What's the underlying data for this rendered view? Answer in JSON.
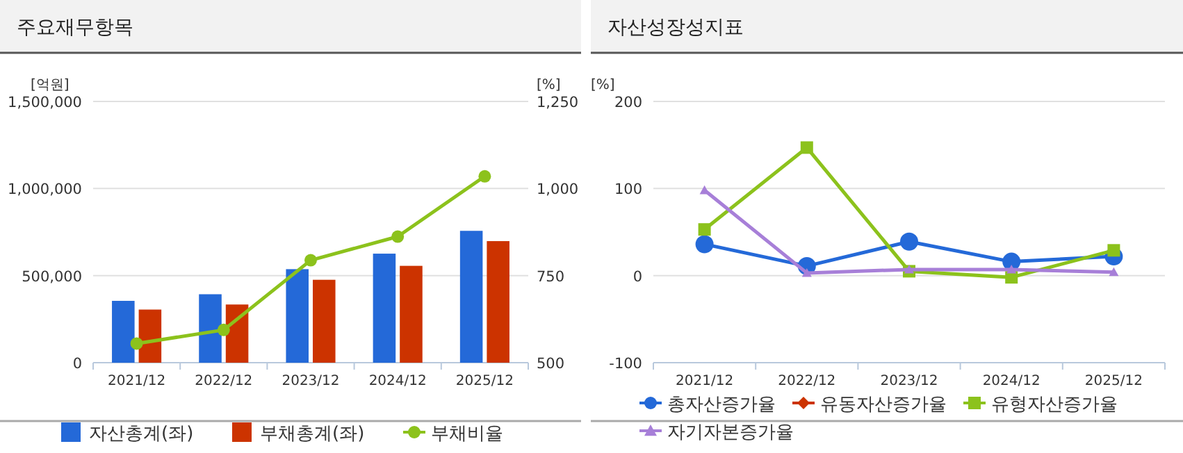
{
  "chart_data": [
    {
      "type": "bar",
      "title": "주요재무항목",
      "ylabel": "[억원]",
      "y2label": "[%]",
      "categories": [
        "2021/12",
        "2022/12",
        "2023/12",
        "2024/12",
        "2025/12"
      ],
      "series": [
        {
          "name": "자산총계(좌)",
          "color": "#2469d8",
          "values": [
            355000,
            393000,
            537000,
            626000,
            757000
          ]
        },
        {
          "name": "부채총계(좌)",
          "color": "#cc3300",
          "values": [
            305000,
            334000,
            476000,
            556000,
            698000
          ]
        },
        {
          "name": "부채비율",
          "color": "#8cc21c",
          "type": "line",
          "axis": "y2",
          "marker": "circle",
          "values": [
            555,
            594,
            794,
            862,
            1035
          ]
        }
      ],
      "ylim": [
        0,
        1500000
      ],
      "yticks": [
        0,
        {
          "value": 500000,
          "label": "500,000"
        },
        {
          "value": 1000000,
          "label": "1,000,000"
        },
        {
          "value": 1500000,
          "label": "1,500,000"
        }
      ],
      "y2lim": [
        500,
        1250
      ],
      "y2ticks": [
        500,
        750,
        {
          "value": 1000,
          "label": "1,000"
        },
        {
          "value": 1250,
          "label": "1,250"
        }
      ],
      "grid": "y",
      "legend": "bottom"
    },
    {
      "type": "line",
      "title": "자산성장성지표",
      "ylabel": "[%]",
      "categories": [
        "2021/12",
        "2022/12",
        "2023/12",
        "2024/12",
        "2025/12"
      ],
      "series": [
        {
          "name": "총자산증가율",
          "color": "#2469d8",
          "marker": "circle",
          "values": [
            36,
            11,
            39,
            16,
            22
          ]
        },
        {
          "name": "유동자산증가율",
          "color": "#cc3300",
          "marker": "diamond",
          "values": [
            null,
            null,
            null,
            null,
            null
          ]
        },
        {
          "name": "유형자산증가율",
          "color": "#8cc21c",
          "marker": "square",
          "values": [
            53,
            147,
            5,
            -2,
            29
          ]
        },
        {
          "name": "자기자본증가율",
          "color": "#a77fd8",
          "marker": "triangle",
          "values": [
            98,
            3,
            7,
            7,
            4
          ]
        }
      ],
      "ylim": [
        -100,
        200
      ],
      "yticks": [
        -100,
        0,
        100,
        200
      ],
      "grid": "y",
      "legend": "bottom"
    }
  ]
}
